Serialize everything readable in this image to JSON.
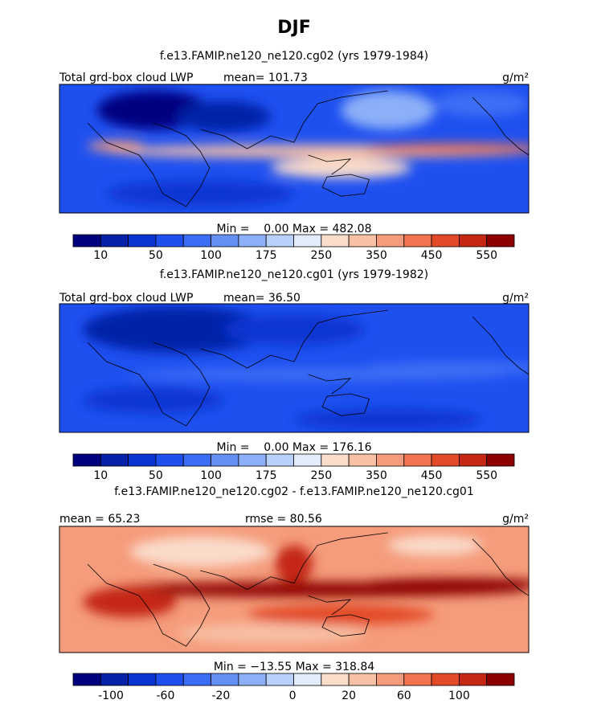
{
  "title": "DJF",
  "panels": [
    {
      "subtitle": "f.e13.FAMIP.ne120_ne120.cg02 (yrs 1979-1984)",
      "left_label": "Total grd-box cloud LWP",
      "center_label": "mean= 101.73",
      "units": "g/m²",
      "minmax": "Min =    0.00 Max = 482.08",
      "colorbar": {
        "labels": [
          10,
          50,
          100,
          175,
          250,
          350,
          450,
          550
        ]
      },
      "field": "high"
    },
    {
      "subtitle": "f.e13.FAMIP.ne120_ne120.cg01 (yrs 1979-1982)",
      "left_label": "Total grd-box cloud LWP",
      "center_label": "mean=  36.50",
      "units": "g/m²",
      "minmax": "Min =    0.00 Max = 176.16",
      "colorbar": {
        "labels": [
          10,
          50,
          100,
          175,
          250,
          350,
          450,
          550
        ]
      },
      "field": "low"
    },
    {
      "subtitle": "f.e13.FAMIP.ne120_ne120.cg02 - f.e13.FAMIP.ne120_ne120.cg01",
      "left_label": "mean =  65.23",
      "center_label": "rmse =  80.56",
      "units": "g/m²",
      "minmax": "Min = −13.55 Max = 318.84",
      "colorbar": {
        "labels": [
          -100,
          -60,
          -20,
          0,
          20,
          60,
          100
        ]
      },
      "field": "diff"
    }
  ],
  "colors": [
    "#00007f",
    "#0521a8",
    "#0a35d2",
    "#1e50f0",
    "#3c6ef5",
    "#6490f5",
    "#8cb0f8",
    "#b8d0fa",
    "#e2ecfa",
    "#fadccb",
    "#f8c0a4",
    "#f59c7c",
    "#f07450",
    "#e24a28",
    "#c42814",
    "#8c0000"
  ]
}
